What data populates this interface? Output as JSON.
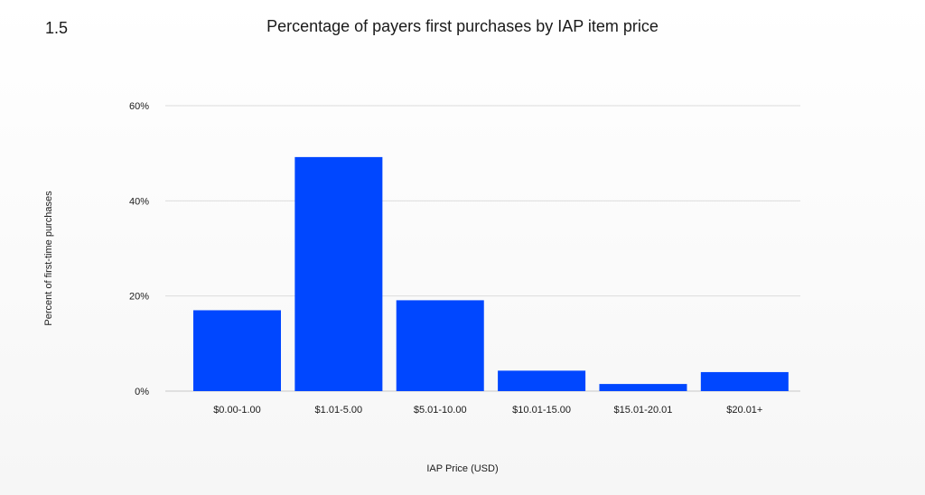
{
  "page": {
    "slide_number": "1.5"
  },
  "chart_data": {
    "type": "bar",
    "title": "Percentage of payers first purchases by IAP item price",
    "xlabel": "IAP Price (USD)",
    "ylabel": "Percent of first-time purchases",
    "categories": [
      "$0.00-1.00",
      "$1.01-5.00",
      "$5.01-10.00",
      "$10.01-15.00",
      "$15.01-20.01",
      "$20.01+"
    ],
    "values": [
      17.0,
      49.2,
      19.1,
      4.3,
      1.5,
      4.0
    ],
    "ylim": [
      0,
      60
    ],
    "yticks": [
      0,
      20,
      40,
      60
    ],
    "ytick_labels": [
      "0%",
      "20%",
      "40%",
      "60%"
    ],
    "bar_color": "#0047FF",
    "grid": true,
    "legend": "none"
  }
}
